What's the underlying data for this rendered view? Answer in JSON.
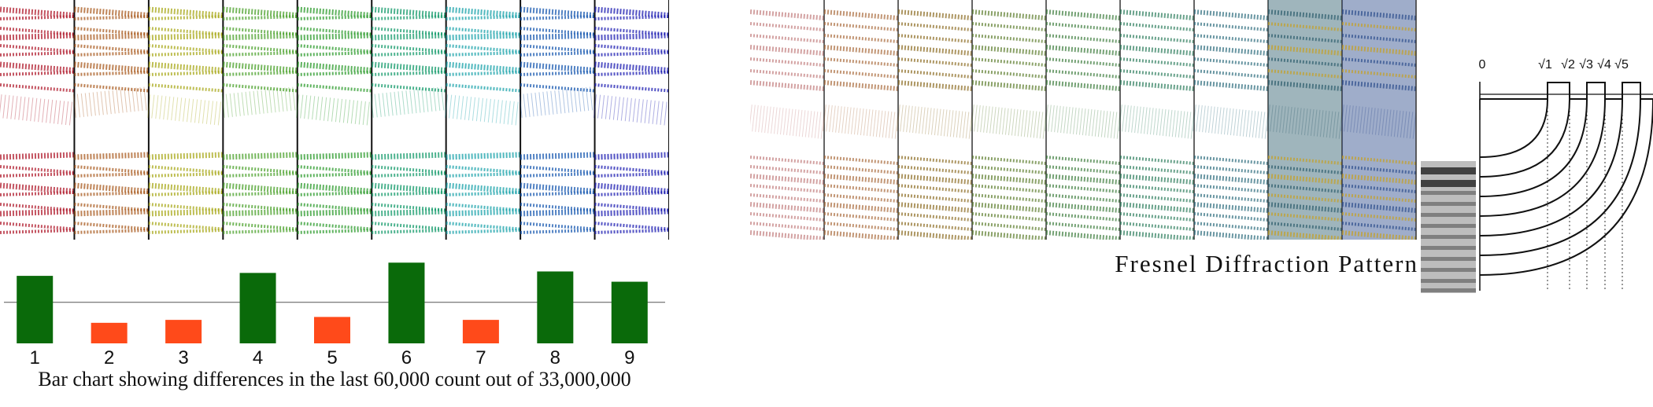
{
  "left_figure": {
    "caption": "Bar chart showing differences in the last 60,000 count out of 33,000,000",
    "strip_colors": [
      "#b01c2e",
      "#a85a1e",
      "#a8a81a",
      "#4aa02a",
      "#2a9a2a",
      "#139a6a",
      "#15a0a8",
      "#1a5ab0",
      "#1a1ab0"
    ],
    "stripe_rows": [
      12,
      24,
      36,
      48,
      58,
      70,
      82,
      95,
      108,
      200,
      212,
      224,
      236,
      248,
      260,
      272,
      284,
      296
    ]
  },
  "chart_data": {
    "type": "bar",
    "categories": [
      "1",
      "2",
      "3",
      "4",
      "5",
      "6",
      "7",
      "8",
      "9"
    ],
    "values": [
      18,
      -14,
      -12,
      20,
      -10,
      27,
      -12,
      21,
      14
    ],
    "colors": [
      "#0a6a0a",
      "#ff4a1a",
      "#ff4a1a",
      "#0a6a0a",
      "#ff4a1a",
      "#0a6a0a",
      "#ff4a1a",
      "#0a6a0a",
      "#0a6a0a"
    ],
    "positive_color": "#0a6a0a",
    "negative_color": "#ff4a1a",
    "ylim": [
      -28,
      40
    ],
    "title": "",
    "xlabel": "",
    "ylabel": ""
  },
  "right_figure": {
    "caption": "Fresnel Diffraction Pattern",
    "strip_colors": [
      "#c07a7a",
      "#a86a3a",
      "#8a6a20",
      "#5a7a2a",
      "#3a7a3a",
      "#2a7a5a",
      "#2a6a7a",
      "#2a5a6a",
      "#2a4a8a"
    ],
    "zone_labels": [
      "0",
      "√1",
      "√2",
      "√3",
      "√4",
      "√5"
    ]
  }
}
